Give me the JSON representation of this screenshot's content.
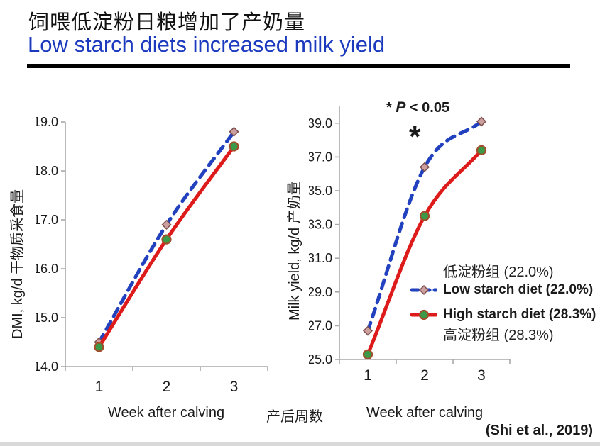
{
  "header": {
    "title_zh": "饲喂低淀粉日粮增加了产奶量",
    "title_en": "Low starch diets increased milk yield"
  },
  "annotations": {
    "sig_star": "* ",
    "sig_p": "P",
    "sig_rest": " < 0.05",
    "week2_star": "*"
  },
  "legend": {
    "items": [
      {
        "label": "低淀粉组 (22.0%)",
        "type": "plain"
      },
      {
        "label": "Low starch diet (22.0%)",
        "type": "low-swatch"
      },
      {
        "label": "High starch diet (28.3%)",
        "type": "high-swatch"
      },
      {
        "label": "高淀粉组 (28.3%)",
        "type": "plain"
      }
    ]
  },
  "middle_xlabel": "产后周数",
  "citation": "(Shi et al., 2019)",
  "colors": {
    "title_blue": "#1c3abe",
    "line_blue": "#2141be",
    "line_red": "#de1b1b",
    "diamond_fill": "#cda0a0",
    "diamond_stroke": "#7e5050",
    "circle_fill": "#3a9a48",
    "circle_stroke": "#a14f2b",
    "axis": "#a9a9a9",
    "text": "#1a1a1a"
  },
  "chart_data": [
    {
      "type": "line",
      "x": [
        1,
        2,
        3
      ],
      "xlabel": "Week after calving",
      "ylabel": "DMI, kg/d 干物质采食量",
      "ylim": [
        14.0,
        19.0
      ],
      "yticks": [
        14.0,
        15.0,
        16.0,
        17.0,
        18.0,
        19.0
      ],
      "grid": false,
      "legend_position": "none",
      "series": [
        {
          "name": "Low starch diet (22.0%)",
          "values": [
            14.5,
            16.9,
            18.8
          ],
          "color": "#2141be",
          "dash": true,
          "marker": "diamond"
        },
        {
          "name": "High starch diet (28.3%)",
          "values": [
            14.4,
            16.6,
            18.5
          ],
          "color": "#de1b1b",
          "dash": false,
          "marker": "circle"
        }
      ]
    },
    {
      "type": "line",
      "x": [
        1,
        2,
        3
      ],
      "xlabel": "Week after calving",
      "ylabel": "Milk yield, kg/d 产奶量",
      "ylim": [
        25.0,
        40.0
      ],
      "yticks": [
        25.0,
        27.0,
        29.0,
        31.0,
        33.0,
        35.0,
        37.0,
        39.0
      ],
      "grid": false,
      "legend_position": "right-inside",
      "series": [
        {
          "name": "Low starch diet (22.0%)",
          "values": [
            26.7,
            36.4,
            39.1
          ],
          "color": "#2141be",
          "dash": true,
          "marker": "diamond"
        },
        {
          "name": "High starch diet (28.3%)",
          "values": [
            25.3,
            33.5,
            37.4
          ],
          "color": "#de1b1b",
          "dash": false,
          "marker": "circle"
        }
      ]
    }
  ]
}
